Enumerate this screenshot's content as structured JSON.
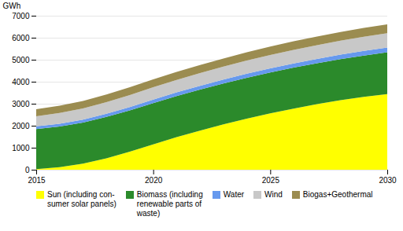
{
  "chart_data": {
    "type": "area",
    "stacked": true,
    "x": [
      2015,
      2016,
      2017,
      2018,
      2019,
      2020,
      2021,
      2022,
      2023,
      2024,
      2025,
      2026,
      2027,
      2028,
      2029,
      2030
    ],
    "series": [
      {
        "name": "Sun (including con-\nsumer solar panels)",
        "color": "#FFFF00",
        "values": [
          30,
          120,
          280,
          520,
          820,
          1150,
          1480,
          1780,
          2060,
          2320,
          2560,
          2780,
          2980,
          3160,
          3310,
          3440
        ]
      },
      {
        "name": "Biomass (including\nrenewable parts of\nwaste)",
        "color": "#2B8A2B",
        "values": [
          1820,
          1840,
          1860,
          1880,
          1880,
          1880,
          1870,
          1860,
          1860,
          1860,
          1860,
          1860,
          1860,
          1870,
          1880,
          1900
        ]
      },
      {
        "name": "Water",
        "color": "#6699EE",
        "values": [
          120,
          130,
          138,
          145,
          152,
          158,
          164,
          170,
          176,
          182,
          188,
          194,
          200,
          206,
          212,
          218
        ]
      },
      {
        "name": "Wind",
        "color": "#C8C8C8",
        "values": [
          460,
          490,
          510,
          530,
          545,
          560,
          570,
          580,
          590,
          600,
          608,
          616,
          624,
          632,
          640,
          648
        ]
      },
      {
        "name": "Biogas+Geothermal",
        "color": "#9B8C50",
        "values": [
          320,
          330,
          338,
          345,
          350,
          355,
          360,
          365,
          370,
          375,
          380,
          385,
          390,
          395,
          400,
          405
        ]
      }
    ],
    "ylabel": "GWh",
    "xlim": [
      2015,
      2030
    ],
    "xticks": [
      2015,
      2020,
      2025,
      2030
    ],
    "ylim": [
      0,
      7000
    ],
    "yticks": [
      0,
      1000,
      2000,
      3000,
      4000,
      5000,
      6000,
      7000
    ],
    "grid": true,
    "legend": "bottom"
  }
}
